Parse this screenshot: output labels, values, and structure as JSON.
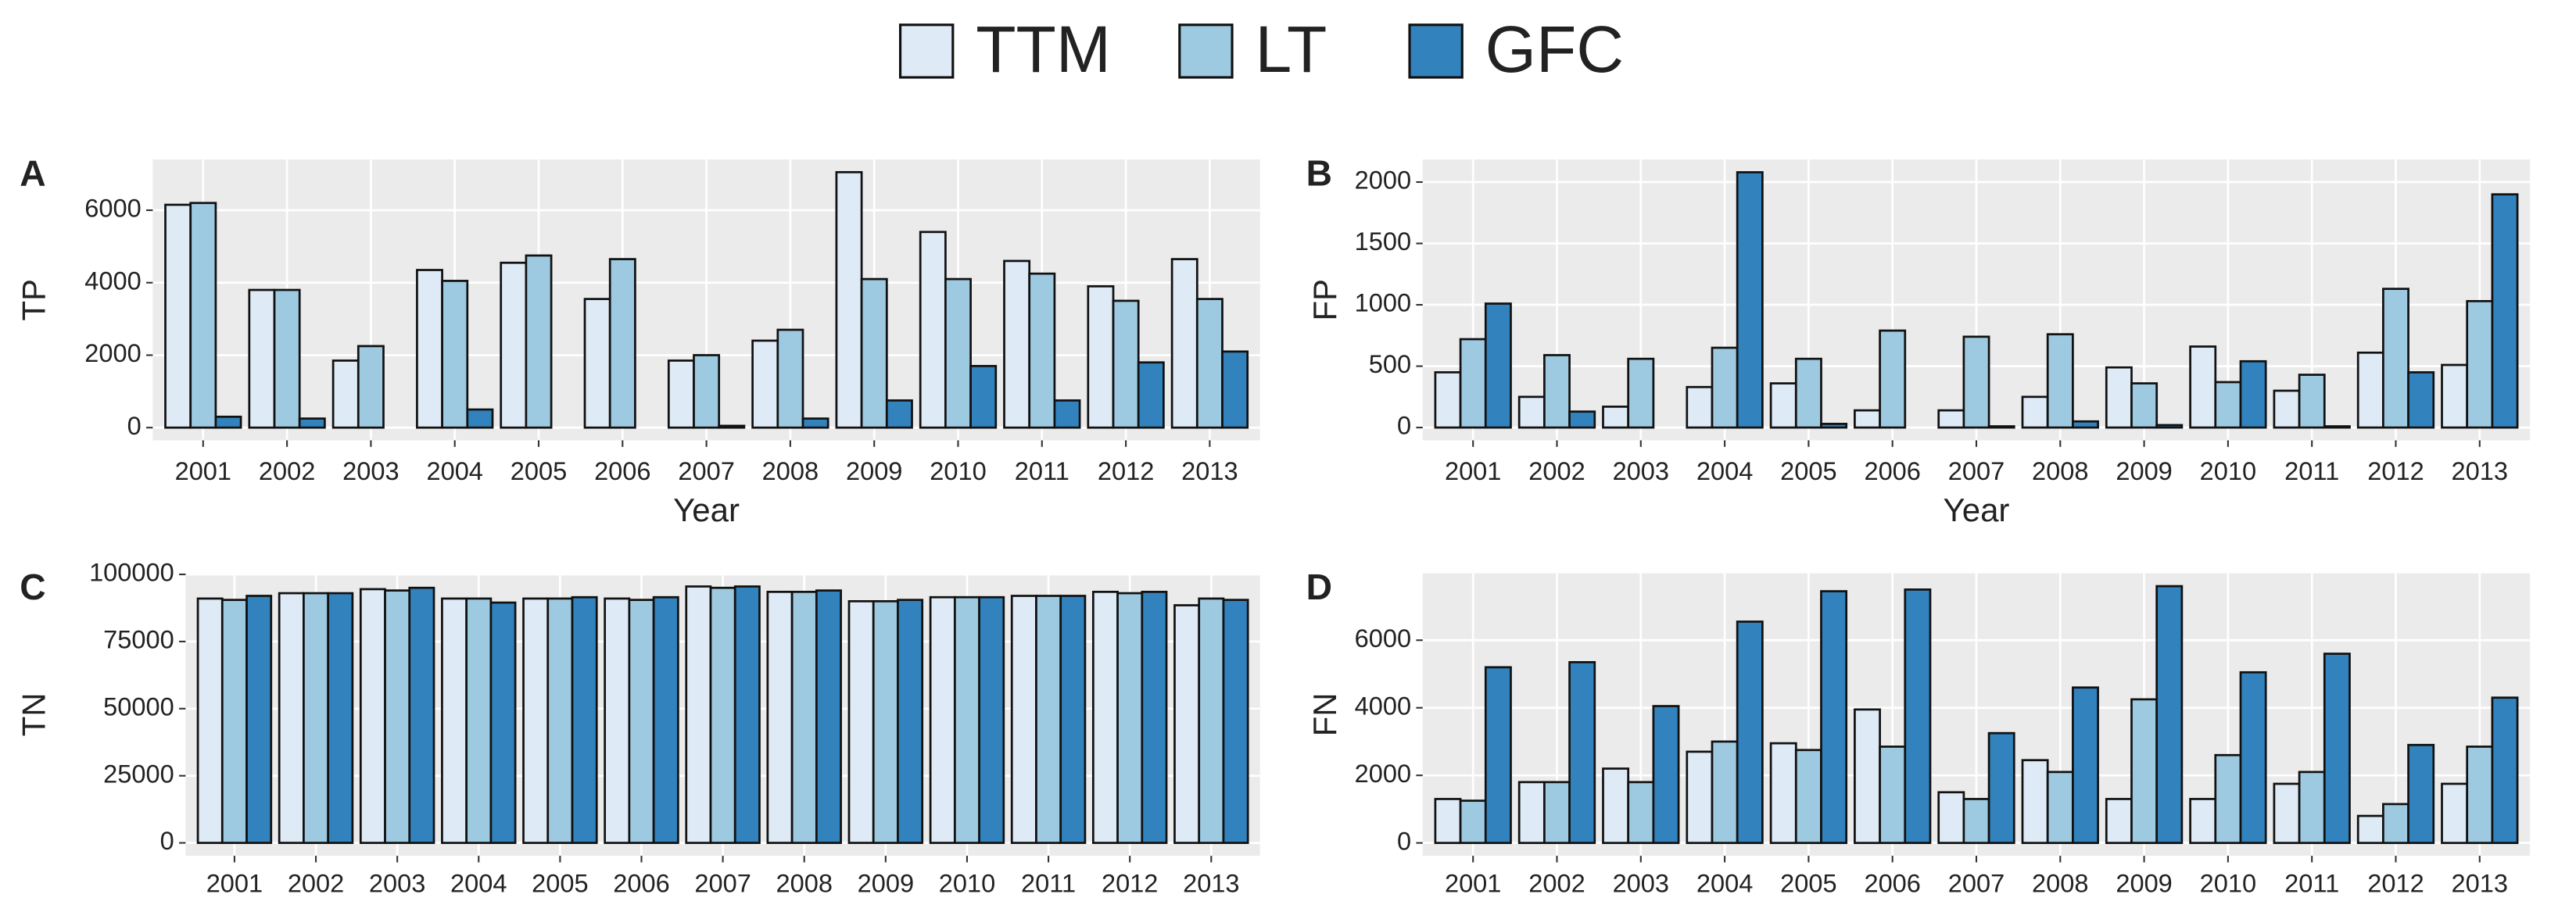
{
  "chart_data": [
    {
      "type": "bar",
      "panel_label": "A",
      "ylabel": "TP",
      "xlabel": "Year",
      "categories": [
        "2001",
        "2002",
        "2003",
        "2004",
        "2005",
        "2006",
        "2007",
        "2008",
        "2009",
        "2010",
        "2011",
        "2012",
        "2013"
      ],
      "series": [
        {
          "name": "TTM",
          "color": "#deebf7",
          "values": [
            6150,
            3800,
            1850,
            4350,
            4550,
            3550,
            1850,
            2400,
            7050,
            5400,
            4600,
            3900,
            4650
          ]
        },
        {
          "name": "LT",
          "color": "#9ecae1",
          "values": [
            6200,
            3800,
            2250,
            4050,
            4750,
            4650,
            2000,
            2700,
            4100,
            4100,
            4250,
            3500,
            3550
          ]
        },
        {
          "name": "GFC",
          "color": "#3182bd",
          "values": [
            300,
            250,
            0,
            500,
            0,
            0,
            50,
            250,
            750,
            1700,
            750,
            1800,
            2100
          ]
        }
      ],
      "ylim": [
        -350,
        7400
      ],
      "yticks": [
        0,
        2000,
        4000,
        6000
      ],
      "grid": true
    },
    {
      "type": "bar",
      "panel_label": "B",
      "ylabel": "FP",
      "xlabel": "Year",
      "categories": [
        "2001",
        "2002",
        "2003",
        "2004",
        "2005",
        "2006",
        "2007",
        "2008",
        "2009",
        "2010",
        "2011",
        "2012",
        "2013"
      ],
      "series": [
        {
          "color": "#deebf7",
          "values": [
            450,
            250,
            170,
            330,
            360,
            140,
            140,
            250,
            490,
            660,
            300,
            610,
            510
          ]
        },
        {
          "color": "#9ecae1",
          "values": [
            720,
            590,
            560,
            650,
            560,
            790,
            740,
            760,
            360,
            370,
            430,
            1130,
            1030
          ]
        },
        {
          "color": "#3182bd",
          "values": [
            1010,
            130,
            0,
            2080,
            30,
            0,
            10,
            50,
            20,
            540,
            10,
            450,
            1900
          ]
        }
      ],
      "ylim": [
        -104,
        2184
      ],
      "yticks": [
        0,
        500,
        1000,
        1500,
        2000
      ],
      "grid": true
    },
    {
      "type": "bar",
      "panel_label": "C",
      "ylabel": "TN",
      "categories": [
        "2001",
        "2002",
        "2003",
        "2004",
        "2005",
        "2006",
        "2007",
        "2008",
        "2009",
        "2010",
        "2011",
        "2012",
        "2013"
      ],
      "series": [
        {
          "color": "#deebf7",
          "values": [
            91000,
            93000,
            94500,
            91000,
            91000,
            91000,
            95500,
            93500,
            90000,
            91500,
            92000,
            93500,
            88500
          ]
        },
        {
          "color": "#9ecae1",
          "values": [
            90500,
            93000,
            94000,
            91000,
            91000,
            90500,
            95000,
            93500,
            90000,
            91500,
            92000,
            93000,
            91000
          ]
        },
        {
          "color": "#3182bd",
          "values": [
            92000,
            93000,
            95000,
            89500,
            91500,
            91500,
            95500,
            94000,
            90500,
            91500,
            92000,
            93500,
            90500
          ]
        }
      ],
      "ylim": [
        -4800,
        100400
      ],
      "yticks": [
        0,
        25000,
        50000,
        75000,
        100000
      ],
      "grid": true
    },
    {
      "type": "bar",
      "panel_label": "D",
      "ylabel": "FN",
      "categories": [
        "2001",
        "2002",
        "2003",
        "2004",
        "2005",
        "2006",
        "2007",
        "2008",
        "2009",
        "2010",
        "2011",
        "2012",
        "2013"
      ],
      "series": [
        {
          "color": "#deebf7",
          "values": [
            1300,
            1800,
            2200,
            2700,
            2950,
            3950,
            1500,
            2450,
            1300,
            1300,
            1750,
            800,
            1750
          ]
        },
        {
          "color": "#9ecae1",
          "values": [
            1250,
            1800,
            1800,
            3000,
            2750,
            2850,
            1300,
            2100,
            4250,
            2600,
            2100,
            1150,
            2850
          ]
        },
        {
          "color": "#3182bd",
          "values": [
            5200,
            5350,
            4050,
            6550,
            7450,
            7500,
            3250,
            4600,
            7600,
            5050,
            5600,
            2900,
            4300
          ]
        }
      ],
      "ylim": [
        -380,
        7980
      ],
      "yticks": [
        0,
        2000,
        4000,
        6000
      ],
      "grid": true
    }
  ]
}
